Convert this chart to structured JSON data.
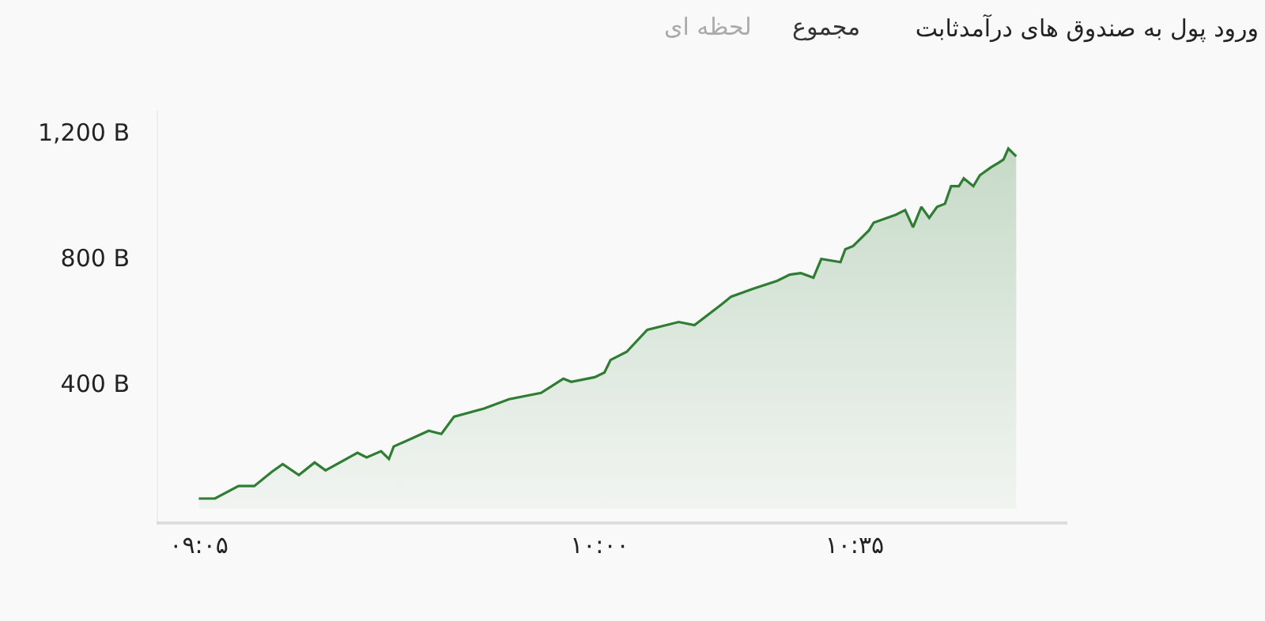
{
  "chart_data": {
    "type": "area",
    "title": "ورود پول به صندوق های درآمدثابت",
    "annotations": [
      "مجموع",
      "لحظه ای"
    ],
    "x": [
      9.083,
      9.12,
      9.174,
      9.21,
      9.25,
      9.275,
      9.312,
      9.348,
      9.373,
      9.446,
      9.467,
      9.5,
      9.518,
      9.529,
      9.609,
      9.638,
      9.667,
      9.736,
      9.793,
      9.866,
      9.917,
      9.935,
      9.989,
      10.011,
      10.025,
      10.062,
      10.109,
      10.181,
      10.217,
      10.279,
      10.301,
      10.351,
      10.406,
      10.435,
      10.46,
      10.489,
      10.507,
      10.551,
      10.562,
      10.58,
      10.616,
      10.627,
      10.678,
      10.699,
      10.717,
      10.736,
      10.754,
      10.772,
      10.79,
      10.804,
      10.822,
      10.833,
      10.855,
      10.87,
      10.895,
      10.913,
      10.924,
      10.935,
      10.953
    ],
    "series": [
      {
        "color": "#2e7d32",
        "values": [
          33,
          33,
          73,
          73,
          118,
          143,
          108,
          148,
          123,
          179,
          164,
          184,
          159,
          199,
          249,
          239,
          294,
          320,
          350,
          370,
          415,
          405,
          420,
          435,
          475,
          501,
          571,
          596,
          586,
          652,
          677,
          702,
          727,
          747,
          752,
          737,
          797,
          787,
          828,
          838,
          888,
          913,
          938,
          953,
          898,
          963,
          928,
          963,
          973,
          1029,
          1029,
          1054,
          1029,
          1064,
          1089,
          1104,
          1114,
          1149,
          1124
        ]
      }
    ],
    "xlim": [
      8.99,
      11.07
    ],
    "xticks": [
      {
        "value": 9.0833,
        "label": "۰۹:۰۵"
      },
      {
        "value": 10,
        "label": "۱۰:۰۰"
      },
      {
        "value": 10.5833,
        "label": "۱۰:۳۵"
      }
    ],
    "ylim": [
      -40,
      1270
    ],
    "yticks": [
      {
        "value": 400,
        "label": "400 B"
      },
      {
        "value": 800,
        "label": "800 B"
      },
      {
        "value": 1200,
        "label": "1,200 B"
      }
    ],
    "grid": false,
    "legend": false
  }
}
